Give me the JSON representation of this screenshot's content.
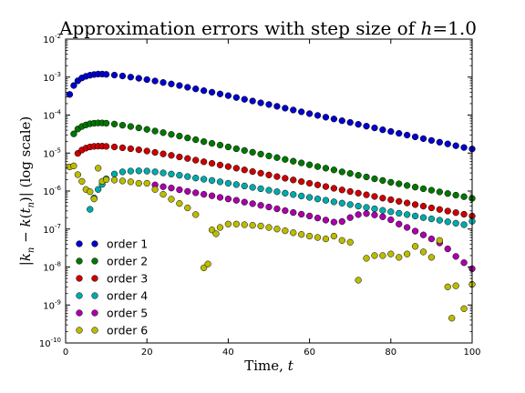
{
  "chart_data": {
    "type": "scatter",
    "title": "Approximation errors with step size of ",
    "title_math_var": "h",
    "title_math_eq": "=",
    "title_math_val": "1.0",
    "xlabel": "Time, ",
    "xlabel_math": "t",
    "ylabel_parts": [
      "|",
      "k",
      "n",
      " − ",
      "k",
      "(",
      "t",
      "n",
      ")| (log scale)"
    ],
    "xlim": [
      0,
      100
    ],
    "ylim_log10": [
      -10,
      -2
    ],
    "y_scale": "log",
    "grid": false,
    "legend_position": "lower-left",
    "x_ticks": [
      0,
      20,
      40,
      60,
      80,
      100
    ],
    "x_tick_labels": [
      "0",
      "20",
      "40",
      "60",
      "80",
      "100"
    ],
    "y_ticks_exponent": [
      -10,
      -9,
      -8,
      -7,
      -6,
      -5,
      -4,
      -3,
      -2
    ],
    "y_tick_base": "10",
    "y_tick_exp_labels": [
      "-10",
      "-9",
      "-8",
      "-7",
      "-6",
      "-5",
      "-4",
      "-3",
      "-2"
    ],
    "series": [
      {
        "name": "order 1",
        "color": "#0000cc",
        "x": [
          1,
          2,
          3,
          4,
          5,
          6,
          7,
          8,
          9,
          10,
          12,
          14,
          16,
          18,
          20,
          22,
          24,
          26,
          28,
          30,
          32,
          34,
          36,
          38,
          40,
          42,
          44,
          46,
          48,
          50,
          52,
          54,
          56,
          58,
          60,
          62,
          64,
          66,
          68,
          70,
          72,
          74,
          76,
          78,
          80,
          82,
          84,
          86,
          88,
          90,
          92,
          94,
          96,
          98,
          100
        ],
        "y": [
          0.00035,
          0.0006,
          0.0008,
          0.00095,
          0.00105,
          0.00112,
          0.00117,
          0.0012,
          0.0012,
          0.00118,
          0.00113,
          0.00107,
          0.001,
          0.00093,
          0.00086,
          0.00079,
          0.00072,
          0.00066,
          0.0006,
          0.00054,
          0.00049,
          0.00044,
          0.0004,
          0.00036,
          0.000325,
          0.00029,
          0.00026,
          0.000235,
          0.00021,
          0.00019,
          0.00017,
          0.000152,
          0.000136,
          0.000122,
          0.000109,
          9.8e-05,
          8.8e-05,
          7.9e-05,
          7.1e-05,
          6.4e-05,
          5.7e-05,
          5.1e-05,
          4.6e-05,
          4.1e-05,
          3.7e-05,
          3.3e-05,
          2.97e-05,
          2.67e-05,
          2.4e-05,
          2.15e-05,
          1.93e-05,
          1.74e-05,
          1.56e-05,
          1.4e-05,
          1.28e-05
        ]
      },
      {
        "name": "order 2",
        "color": "#007700",
        "x": [
          2,
          3,
          4,
          5,
          6,
          7,
          8,
          9,
          10,
          12,
          14,
          16,
          18,
          20,
          22,
          24,
          26,
          28,
          30,
          32,
          34,
          36,
          38,
          40,
          42,
          44,
          46,
          48,
          50,
          52,
          54,
          56,
          58,
          60,
          62,
          64,
          66,
          68,
          70,
          72,
          74,
          76,
          78,
          80,
          82,
          84,
          86,
          88,
          90,
          92,
          94,
          96,
          98,
          100
        ],
        "y": [
          3.2e-05,
          4.3e-05,
          5e-05,
          5.5e-05,
          5.9e-05,
          6.1e-05,
          6.2e-05,
          6.2e-05,
          6.1e-05,
          5.8e-05,
          5.4e-05,
          5e-05,
          4.6e-05,
          4.2e-05,
          3.8e-05,
          3.45e-05,
          3.1e-05,
          2.8e-05,
          2.5e-05,
          2.25e-05,
          2e-05,
          1.8e-05,
          1.62e-05,
          1.45e-05,
          1.3e-05,
          1.17e-05,
          1.05e-05,
          9.4e-06,
          8.4e-06,
          7.6e-06,
          6.8e-06,
          6.1e-06,
          5.5e-06,
          4.9e-06,
          4.4e-06,
          4e-06,
          3.6e-06,
          3.2e-06,
          2.9e-06,
          2.6e-06,
          2.35e-06,
          2.1e-06,
          1.9e-06,
          1.7e-06,
          1.55e-06,
          1.4e-06,
          1.27e-06,
          1.15e-06,
          1.05e-06,
          9.5e-07,
          8.6e-07,
          7.8e-07,
          7.1e-07,
          6.4e-07
        ]
      },
      {
        "name": "order 3",
        "color": "#cc0000",
        "x": [
          3,
          4,
          5,
          6,
          7,
          8,
          9,
          10,
          12,
          14,
          16,
          18,
          20,
          22,
          24,
          26,
          28,
          30,
          32,
          34,
          36,
          38,
          40,
          42,
          44,
          46,
          48,
          50,
          52,
          54,
          56,
          58,
          60,
          62,
          64,
          66,
          68,
          70,
          72,
          74,
          76,
          78,
          80,
          82,
          84,
          86,
          88,
          90,
          92,
          94,
          96,
          98,
          100
        ],
        "y": [
          9.8e-06,
          1.2e-05,
          1.35e-05,
          1.45e-05,
          1.5e-05,
          1.52e-05,
          1.52e-05,
          1.5e-05,
          1.45e-05,
          1.38e-05,
          1.3e-05,
          1.22e-05,
          1.13e-05,
          1.04e-05,
          9.5e-06,
          8.7e-06,
          7.9e-06,
          7.2e-06,
          6.5e-06,
          5.9e-06,
          5.35e-06,
          4.85e-06,
          4.4e-06,
          4e-06,
          3.6e-06,
          3.25e-06,
          2.95e-06,
          2.65e-06,
          2.4e-06,
          2.17e-06,
          1.96e-06,
          1.77e-06,
          1.6e-06,
          1.45e-06,
          1.31e-06,
          1.18e-06,
          1.07e-06,
          9.7e-07,
          8.8e-07,
          7.95e-07,
          7.2e-07,
          6.5e-07,
          5.9e-07,
          5.35e-07,
          4.85e-07,
          4.4e-07,
          4e-07,
          3.6e-07,
          3.27e-07,
          2.97e-07,
          2.7e-07,
          2.45e-07,
          2.2e-07
        ]
      },
      {
        "name": "order 4",
        "color": "#00aaaa",
        "x": [
          6,
          7,
          8,
          9,
          10,
          12,
          14,
          16,
          18,
          20,
          22,
          24,
          26,
          28,
          30,
          32,
          34,
          36,
          38,
          40,
          42,
          44,
          46,
          48,
          50,
          52,
          54,
          56,
          58,
          60,
          62,
          64,
          66,
          68,
          70,
          72,
          74,
          76,
          78,
          80,
          82,
          84,
          86,
          88,
          90,
          92,
          94,
          96,
          98,
          100
        ],
        "y": [
          3.3e-07,
          6.6e-07,
          1.1e-06,
          1.5e-06,
          2.1e-06,
          2.8e-06,
          3.2e-06,
          3.35e-06,
          3.4e-06,
          3.35e-06,
          3.2e-06,
          3e-06,
          2.8e-06,
          2.6e-06,
          2.4e-06,
          2.2e-06,
          2.05e-06,
          1.9e-06,
          1.75e-06,
          1.6e-06,
          1.48e-06,
          1.36e-06,
          1.25e-06,
          1.15e-06,
          1.05e-06,
          9.6e-07,
          8.8e-07,
          8.1e-07,
          7.4e-07,
          6.8e-07,
          6.2e-07,
          5.7e-07,
          5.2e-07,
          4.8e-07,
          4.4e-07,
          4e-07,
          3.7e-07,
          3.4e-07,
          3.1e-07,
          2.85e-07,
          2.6e-07,
          2.4e-07,
          2.2e-07,
          2e-07,
          1.85e-07,
          1.7e-07,
          1.55e-07,
          1.42e-07,
          1.3e-07,
          1.6e-07
        ]
      },
      {
        "name": "order 5",
        "color": "#aa00aa",
        "x": [
          22,
          24,
          26,
          28,
          30,
          32,
          34,
          36,
          38,
          40,
          42,
          44,
          46,
          48,
          50,
          52,
          54,
          56,
          58,
          60,
          62,
          64,
          66,
          68,
          70,
          72,
          74,
          76,
          78,
          80,
          82,
          84,
          86,
          88,
          90,
          92,
          94,
          96,
          98,
          100
        ],
        "y": [
          1.45e-06,
          1.3e-06,
          1.2e-06,
          1.08e-06,
          9.8e-07,
          9e-07,
          8.2e-07,
          7.5e-07,
          6.8e-07,
          6.2e-07,
          5.7e-07,
          5.1e-07,
          4.65e-07,
          4.2e-07,
          3.8e-07,
          3.4e-07,
          3.05e-07,
          2.72e-07,
          2.45e-07,
          2.2e-07,
          1.95e-07,
          1.72e-07,
          1.52e-07,
          1.58e-07,
          2e-07,
          2.4e-07,
          2.55e-07,
          2.35e-07,
          2.1e-07,
          1.75e-07,
          1.35e-07,
          1.1e-07,
          8.8e-08,
          7e-08,
          5.5e-08,
          4.3e-08,
          3e-08,
          1.9e-08,
          1.3e-08,
          9e-09
        ]
      },
      {
        "name": "order 6",
        "color": "#bbbb00",
        "x": [
          1,
          2,
          3,
          4,
          5,
          6,
          7,
          8,
          9,
          10,
          12,
          14,
          16,
          18,
          20,
          22,
          24,
          26,
          28,
          30,
          32,
          34,
          35,
          36,
          37,
          38,
          40,
          42,
          44,
          46,
          48,
          50,
          52,
          54,
          56,
          58,
          60,
          62,
          64,
          66,
          68,
          70,
          72,
          74,
          76,
          78,
          80,
          82,
          84,
          86,
          88,
          90,
          92,
          94,
          95,
          96,
          98,
          100
        ],
        "y": [
          4.3e-06,
          4.6e-06,
          2.7e-06,
          1.8e-06,
          1.1e-06,
          9.6e-07,
          6.2e-07,
          4e-06,
          1.8e-06,
          2e-06,
          1.95e-06,
          1.85e-06,
          1.75e-06,
          1.6e-06,
          1.6e-06,
          1.1e-06,
          8.2e-07,
          6.1e-07,
          4.7e-07,
          3.6e-07,
          2.4e-07,
          9.5e-09,
          1.2e-08,
          9.5e-08,
          7.5e-08,
          1.1e-07,
          1.35e-07,
          1.35e-07,
          1.3e-07,
          1.25e-07,
          1.2e-07,
          1.1e-07,
          1e-07,
          9e-08,
          8e-08,
          7.2e-08,
          6.5e-08,
          6e-08,
          5.5e-08,
          6.5e-08,
          5e-08,
          4.5e-08,
          4.5e-09,
          1.7e-08,
          2e-08,
          2e-08,
          2.2e-08,
          1.8e-08,
          2.2e-08,
          3.5e-08,
          2.5e-08,
          1.8e-08,
          5e-08,
          3e-09,
          4.5e-10,
          3.2e-09,
          8e-10,
          3.5e-09
        ]
      }
    ]
  }
}
